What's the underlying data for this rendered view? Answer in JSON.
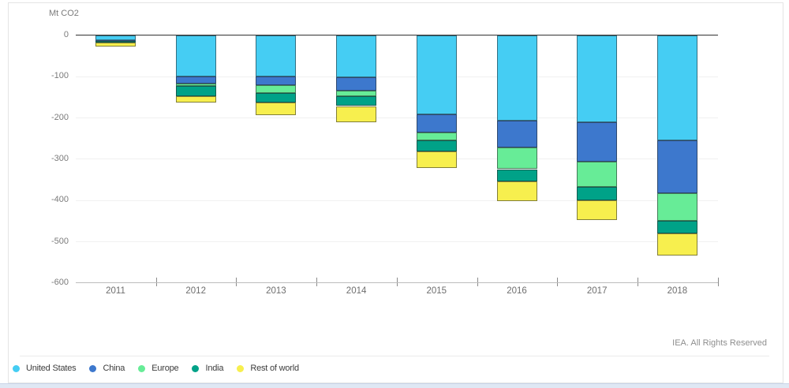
{
  "page": {
    "footer_note": "IEA. All Rights Reserved"
  },
  "chart_data": {
    "type": "bar",
    "stacked": true,
    "orientation": "vertical-negative",
    "title": "",
    "unit_label": "Mt CO2",
    "categories": [
      "2011",
      "2012",
      "2013",
      "2014",
      "2015",
      "2016",
      "2017",
      "2018"
    ],
    "series": [
      {
        "name": "United States",
        "color": "#45cdf3",
        "values": [
          -12,
          -100,
          -100,
          -103,
          -193,
          -208,
          -212,
          -256
        ]
      },
      {
        "name": "China",
        "color": "#3d78cd",
        "values": [
          -2,
          -18,
          -22,
          -31,
          -43,
          -64,
          -94,
          -128
        ]
      },
      {
        "name": "Europe",
        "color": "#67ec97",
        "values": [
          -1,
          -6,
          -18,
          -15,
          -20,
          -53,
          -62,
          -67
        ]
      },
      {
        "name": "India",
        "color": "#00a288",
        "values": [
          -4,
          -25,
          -23,
          -23,
          -26,
          -30,
          -32,
          -29
        ]
      },
      {
        "name": "Rest of world",
        "color": "#f7ef4e",
        "values": [
          -8,
          -15,
          -32,
          -40,
          -41,
          -48,
          -48,
          -54
        ]
      }
    ],
    "totals": [
      -27,
      -164,
      -195,
      -212,
      -323,
      -403,
      -448,
      -534
    ],
    "ylim": [
      -600,
      0
    ],
    "yticks": [
      0,
      -100,
      -200,
      -300,
      -400,
      -500,
      -600
    ],
    "grid": "horizontal-light",
    "legend_position": "bottom-left"
  }
}
